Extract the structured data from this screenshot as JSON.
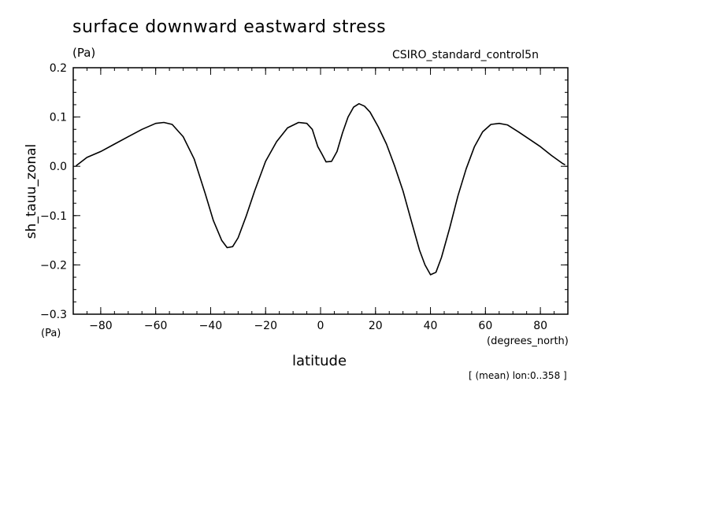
{
  "chart_data": {
    "type": "line",
    "title": "surface downward eastward stress",
    "units": "(Pa)",
    "dataset": "CSIRO_standard_control5n",
    "ylabel": "sh_tauu_zonal",
    "y_units": "(Pa)",
    "xlabel": "latitude",
    "x_units": "(degrees_north)",
    "footnote": "[ (mean) lon:0..358 ]",
    "xlim": [
      -90,
      90
    ],
    "ylim": [
      -0.3,
      0.2
    ],
    "x_ticks": [
      -80,
      -60,
      -40,
      -20,
      0,
      20,
      40,
      60,
      80
    ],
    "y_ticks": [
      -0.3,
      -0.2,
      -0.1,
      0.0,
      0.1,
      0.2
    ],
    "x_tick_labels": [
      "−80",
      "−60",
      "−40",
      "−20",
      "0",
      "20",
      "40",
      "60",
      "80"
    ],
    "y_tick_labels": [
      "−0.3",
      "−0.2",
      "−0.1",
      "0.0",
      "0.1",
      "0.2"
    ],
    "grid": false,
    "series": [
      {
        "x": [
          -89,
          -85,
          -80,
          -75,
          -70,
          -65,
          -60,
          -57,
          -54,
          -50,
          -46,
          -42,
          -39,
          -36,
          -34,
          -32,
          -30,
          -27,
          -24,
          -20,
          -16,
          -12,
          -8,
          -5,
          -3,
          -1,
          0.5,
          2,
          4,
          6,
          8,
          10,
          12,
          14,
          16,
          18,
          21,
          24,
          27,
          30,
          33,
          36,
          38,
          40,
          42,
          44,
          47,
          50,
          53,
          56,
          59,
          62,
          65,
          68,
          72,
          76,
          80,
          84,
          88,
          89
        ],
        "y": [
          0.001,
          0.018,
          0.03,
          0.045,
          0.06,
          0.075,
          0.087,
          0.089,
          0.085,
          0.06,
          0.015,
          -0.055,
          -0.11,
          -0.15,
          -0.165,
          -0.163,
          -0.145,
          -0.1,
          -0.05,
          0.01,
          0.05,
          0.078,
          0.089,
          0.087,
          0.075,
          0.04,
          0.025,
          0.009,
          0.01,
          0.03,
          0.068,
          0.1,
          0.12,
          0.127,
          0.122,
          0.11,
          0.08,
          0.045,
          0.0,
          -0.05,
          -0.11,
          -0.17,
          -0.2,
          -0.22,
          -0.215,
          -0.185,
          -0.125,
          -0.06,
          -0.005,
          0.04,
          0.07,
          0.085,
          0.087,
          0.084,
          0.07,
          0.055,
          0.04,
          0.022,
          0.006,
          0.003
        ]
      }
    ]
  }
}
